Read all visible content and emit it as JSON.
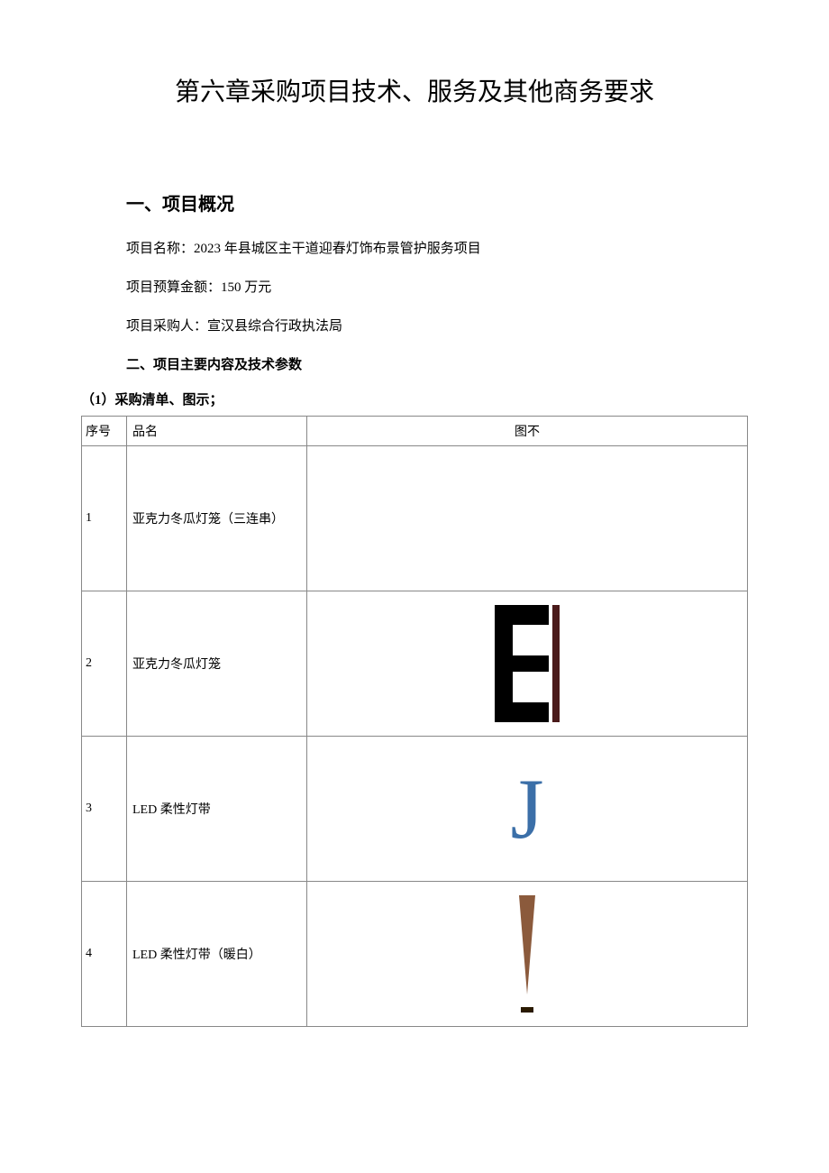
{
  "title": "第六章采购项目技术、服务及其他商务要求",
  "section1": {
    "heading": "一、项目概况",
    "project_name": "项目名称：2023 年县城区主干道迎春灯饰布景管护服务项目",
    "budget": "项目预算金额：150 万元",
    "purchaser": "项目采购人：宣汉县综合行政执法局"
  },
  "section2": {
    "heading": "二、项目主要内容及技术参数",
    "list_heading": "（1）采购清单、图示；"
  },
  "table": {
    "headers": {
      "seq": "序号",
      "name": "品名",
      "image": "图不"
    },
    "rows": [
      {
        "seq": "1",
        "name": "亚克力冬瓜灯笼（三连串）",
        "icon": "none"
      },
      {
        "seq": "2",
        "name": "亚克力冬瓜灯笼",
        "icon": "e-shape"
      },
      {
        "seq": "3",
        "name": "LED 柔性灯带",
        "icon": "j-letter"
      },
      {
        "seq": "4",
        "name": "LED 柔性灯带（暖白）",
        "icon": "exclamation"
      }
    ]
  },
  "colors": {
    "text": "#000000",
    "background": "#ffffff",
    "border": "#888888",
    "e_black": "#000000",
    "e_bar": "#4a1a1a",
    "j_blue": "#3b6fa8",
    "excl_brown": "#8b5a3c",
    "excl_dark": "#2a1a00"
  }
}
